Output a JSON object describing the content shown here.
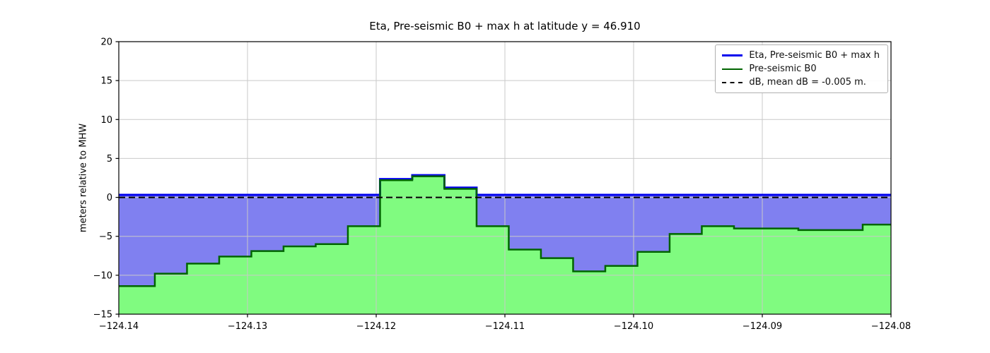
{
  "chart_data": {
    "type": "area",
    "title": "Eta, Pre-seismic B0 + max h at latitude y = 46.910",
    "ylabel": "meters relative to MHW",
    "xlabel": "",
    "xlim": [
      -124.14,
      -124.08
    ],
    "ylim": [
      -15,
      20
    ],
    "grid": true,
    "legend_position": "upper right",
    "xticks": {
      "values": [
        -124.14,
        -124.13,
        -124.12,
        -124.11,
        -124.1,
        -124.09,
        -124.08
      ],
      "labels": [
        "−124.14",
        "−124.13",
        "−124.12",
        "−124.11",
        "−124.10",
        "−124.09",
        "−124.08"
      ]
    },
    "yticks": {
      "values": [
        20,
        15,
        10,
        5,
        0,
        -5,
        -10,
        -15
      ],
      "labels": [
        "20",
        "15",
        "10",
        "5",
        "0",
        "−5",
        "−10",
        "−15"
      ]
    },
    "series": [
      {
        "name": "Eta, Pre-seismic B0 + max h",
        "type": "line",
        "color": "#0000ee",
        "constant_value": 0.32
      },
      {
        "name": "Pre-seismic B0",
        "type": "step",
        "line_color": "#006400",
        "fill_color": "#80fb80",
        "boundaries": [
          -124.14,
          -124.1372,
          -124.1347,
          -124.1322,
          -124.1297,
          -124.1272,
          -124.1247,
          -124.1222,
          -124.1197,
          -124.1172,
          -124.1147,
          -124.1122,
          -124.1097,
          -124.1072,
          -124.1047,
          -124.1022,
          -124.0997,
          -124.0972,
          -124.0947,
          -124.0922,
          -124.0897,
          -124.0872,
          -124.0847,
          -124.0822,
          -124.08
        ],
        "values": [
          -11.4,
          -9.8,
          -8.5,
          -7.6,
          -6.9,
          -6.3,
          -6.0,
          -3.7,
          2.2,
          2.7,
          1.1,
          -3.7,
          -6.7,
          -7.8,
          -9.5,
          -8.8,
          -7.0,
          -4.7,
          -3.7,
          -4.0,
          -4.0,
          -4.2,
          -4.2,
          -3.5
        ]
      },
      {
        "name": "dB, mean dB = -0.005 m.",
        "type": "dashed-line",
        "color": "#000000",
        "constant_value": -0.005
      }
    ],
    "fill_between_color": "#8080f0",
    "grid_color": "#c9c9c9"
  }
}
